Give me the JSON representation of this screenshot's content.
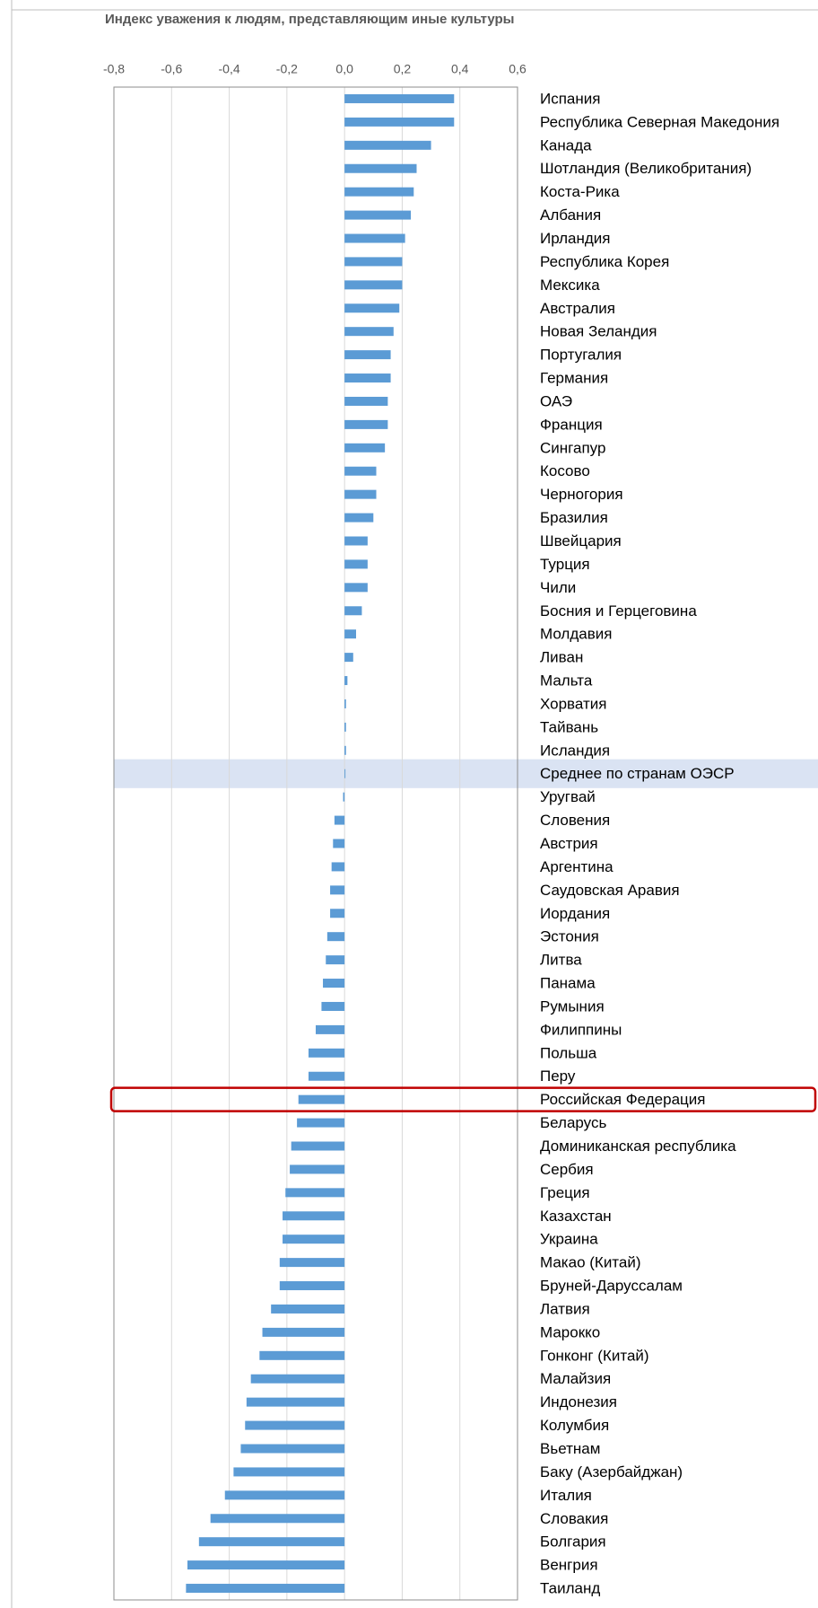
{
  "chart_data": {
    "type": "bar",
    "orientation": "horizontal",
    "title": "Индекс уважения к людям, представляющим иные культуры",
    "categories": [
      "Испания",
      "Республика Северная Македония",
      "Канада",
      "Шотландия (Великобритания)",
      "Коста-Рика",
      "Албания",
      "Ирландия",
      "Республика Корея",
      "Мексика",
      "Австралия",
      "Новая Зеландия",
      "Португалия",
      "Германия",
      "ОАЭ",
      "Франция",
      "Сингапур",
      "Косово",
      "Черногория",
      "Бразилия",
      "Швейцария",
      "Турция",
      "Чили",
      "Босния и Герцеговина",
      "Молдавия",
      "Ливан",
      "Мальта",
      "Хорватия",
      "Тайвань",
      "Исландия",
      "Среднее по странам ОЭСР",
      "Уругвай",
      "Словения",
      "Австрия",
      "Аргентина",
      "Саудовская Аравия",
      "Иордания",
      "Эстония",
      "Литва",
      "Панама",
      "Румыния",
      "Филиппины",
      "Польша",
      "Перу",
      "Российская Федерация",
      "Беларусь",
      "Доминиканская республика",
      "Сербия",
      "Греция",
      "Казахстан",
      "Украина",
      "Макао (Китай)",
      "Бруней-Даруссалам",
      "Латвия",
      "Марокко",
      "Гонконг (Китай)",
      "Малайзия",
      "Индонезия",
      "Колумбия",
      "Вьетнам",
      "Баку (Азербайджан)",
      "Италия",
      "Словакия",
      "Болгария",
      "Венгрия",
      "Таиланд"
    ],
    "values": [
      0.38,
      0.38,
      0.3,
      0.25,
      0.24,
      0.23,
      0.21,
      0.2,
      0.2,
      0.19,
      0.17,
      0.16,
      0.16,
      0.15,
      0.15,
      0.14,
      0.11,
      0.11,
      0.1,
      0.08,
      0.08,
      0.08,
      0.06,
      0.04,
      0.03,
      0.01,
      0.005,
      0.005,
      0.005,
      0.003,
      -0.005,
      -0.035,
      -0.04,
      -0.045,
      -0.05,
      -0.05,
      -0.06,
      -0.065,
      -0.075,
      -0.08,
      -0.1,
      -0.125,
      -0.125,
      -0.16,
      -0.165,
      -0.185,
      -0.19,
      -0.205,
      -0.215,
      -0.215,
      -0.225,
      -0.225,
      -0.255,
      -0.285,
      -0.295,
      -0.325,
      -0.34,
      -0.345,
      -0.36,
      -0.385,
      -0.415,
      -0.465,
      -0.505,
      -0.545,
      -0.55
    ],
    "color": "#5b9bd5",
    "xlim": [
      -0.8,
      0.6
    ],
    "xticks": [
      {
        "value": -0.8,
        "label": "-0,8"
      },
      {
        "value": -0.6,
        "label": "-0,6"
      },
      {
        "value": -0.4,
        "label": "-0,4"
      },
      {
        "value": -0.2,
        "label": "-0,2"
      },
      {
        "value": 0,
        "label": "0,0"
      },
      {
        "value": 0.2,
        "label": "0,2"
      },
      {
        "value": 0.4,
        "label": "0,4"
      },
      {
        "value": 0.6,
        "label": "0,6"
      }
    ],
    "grid": true,
    "highlighted_index": 29,
    "highlight_color": "#dae3f3",
    "outlined_index": 43,
    "outline_color": "#c00000"
  }
}
